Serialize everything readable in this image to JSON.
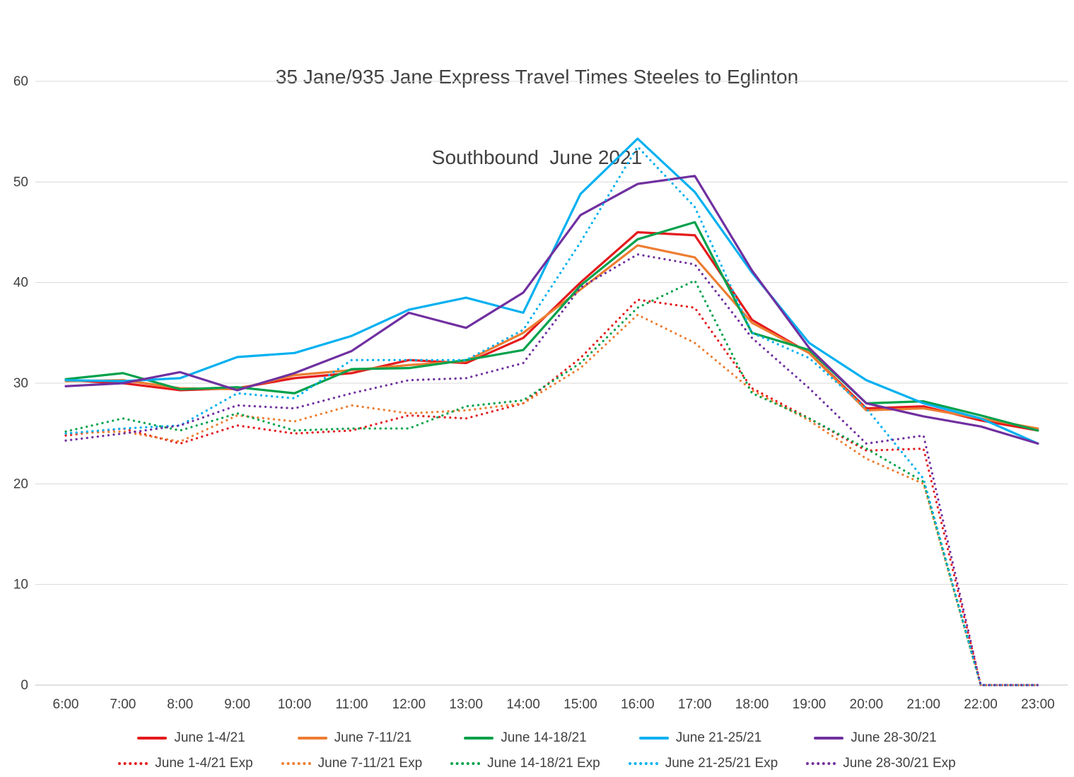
{
  "chart_data": {
    "type": "line",
    "title": "35 Jane/935 Jane Express Travel Times Steeles to Eglinton",
    "subtitle": "Southbound  June 2021",
    "xlabel": "",
    "ylabel": "",
    "ylim": [
      0,
      60
    ],
    "y_ticks": [
      0,
      10,
      20,
      30,
      40,
      50,
      60
    ],
    "grid": "horizontal",
    "legend_position": "bottom",
    "categories": [
      "6:00",
      "7:00",
      "8:00",
      "9:00",
      "10:00",
      "11:00",
      "12:00",
      "13:00",
      "14:00",
      "15:00",
      "16:00",
      "17:00",
      "18:00",
      "19:00",
      "20:00",
      "21:00",
      "22:00",
      "23:00"
    ],
    "series": [
      {
        "name": "June 1-4/21",
        "color": "#e41a1c",
        "style": "solid",
        "values": [
          30.3,
          30.0,
          29.3,
          29.5,
          30.5,
          31.0,
          32.3,
          32.0,
          34.5,
          40.0,
          45.0,
          44.7,
          36.3,
          33.0,
          27.5,
          27.7,
          26.3,
          25.3
        ]
      },
      {
        "name": "June 7-11/21",
        "color": "#ed7d31",
        "style": "solid",
        "values": [
          30.2,
          30.3,
          29.5,
          29.4,
          30.8,
          31.3,
          31.8,
          32.2,
          35.0,
          39.3,
          43.7,
          42.5,
          36.0,
          33.0,
          27.3,
          27.5,
          26.5,
          25.5
        ]
      },
      {
        "name": "June 14-18/21",
        "color": "#00a14b",
        "style": "solid",
        "values": [
          30.4,
          31.0,
          29.4,
          29.6,
          29.0,
          31.4,
          31.5,
          32.3,
          33.3,
          39.7,
          44.3,
          46.0,
          35.0,
          33.3,
          28.0,
          28.2,
          26.8,
          25.3
        ]
      },
      {
        "name": "June 21-25/21",
        "color": "#00b0f0",
        "style": "solid",
        "values": [
          30.3,
          30.2,
          30.5,
          32.6,
          33.0,
          34.7,
          37.3,
          38.5,
          37.0,
          48.8,
          54.3,
          49.0,
          41.0,
          34.0,
          30.3,
          28.0,
          26.5,
          24.0
        ]
      },
      {
        "name": "June 28-30/21",
        "color": "#7030a0",
        "style": "solid",
        "values": [
          29.7,
          30.0,
          31.1,
          29.3,
          31.0,
          33.2,
          37.0,
          35.5,
          39.0,
          46.7,
          49.8,
          50.6,
          41.2,
          33.5,
          28.0,
          26.7,
          25.7,
          24.0
        ]
      },
      {
        "name": "June 1-4/21 Exp",
        "color": "#e41a1c",
        "style": "dotted",
        "values": [
          24.8,
          25.5,
          24.0,
          25.8,
          25.0,
          25.3,
          26.8,
          26.5,
          28.0,
          32.5,
          38.3,
          37.5,
          29.5,
          26.5,
          23.3,
          23.5,
          0,
          0
        ]
      },
      {
        "name": "June 7-11/21 Exp",
        "color": "#ed7d31",
        "style": "dotted",
        "values": [
          25.0,
          25.2,
          24.2,
          26.8,
          26.2,
          27.8,
          27.0,
          27.3,
          28.0,
          31.5,
          36.8,
          34.0,
          29.3,
          26.3,
          22.5,
          20.0,
          0,
          0
        ]
      },
      {
        "name": "June 14-18/21 Exp",
        "color": "#00a14b",
        "style": "dotted",
        "values": [
          25.2,
          26.5,
          25.3,
          27.0,
          25.3,
          25.5,
          25.5,
          27.7,
          28.3,
          32.0,
          37.5,
          40.2,
          29.0,
          26.5,
          23.5,
          20.2,
          0,
          0
        ]
      },
      {
        "name": "June 21-25/21 Exp",
        "color": "#00b0f0",
        "style": "dotted",
        "values": [
          25.0,
          25.5,
          25.8,
          29.0,
          28.5,
          32.3,
          32.3,
          32.3,
          35.3,
          44.0,
          53.5,
          47.5,
          35.0,
          32.5,
          27.5,
          20.5,
          0,
          0
        ]
      },
      {
        "name": "June 28-30/21 Exp",
        "color": "#7030a0",
        "style": "dotted",
        "values": [
          24.3,
          25.0,
          25.8,
          27.8,
          27.5,
          29.0,
          30.3,
          30.5,
          32.0,
          39.5,
          42.8,
          41.8,
          34.5,
          29.5,
          24.0,
          24.8,
          0,
          0
        ]
      }
    ]
  }
}
